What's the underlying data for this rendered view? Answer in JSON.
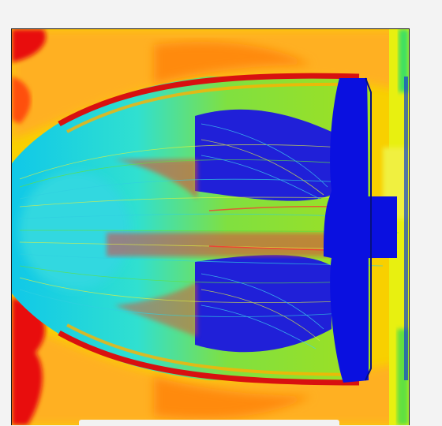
{
  "image": {
    "type": "CFD streamline visualization",
    "colormap": [
      "#0000e0",
      "#00d0e0",
      "#00e060",
      "#f0f000",
      "#ffa000",
      "#ff3000",
      "#e00000"
    ]
  }
}
